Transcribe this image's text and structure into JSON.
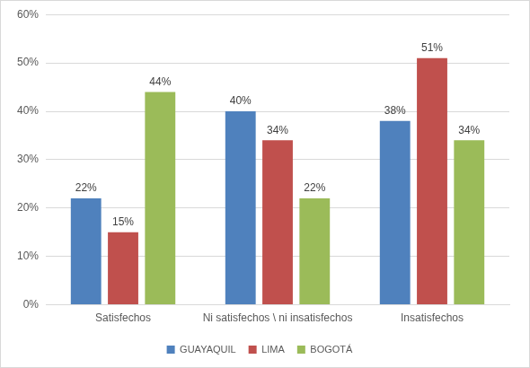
{
  "chart_data": {
    "type": "bar",
    "categories": [
      "Satisfechos",
      "Ni satisfechos \\ ni insatisfechos",
      "Insatisfechos"
    ],
    "series": [
      {
        "name": "GUAYAQUIL",
        "color": "#4f81bd",
        "values": [
          22,
          40,
          38
        ],
        "value_labels": [
          "22%",
          "40%",
          "38%"
        ]
      },
      {
        "name": "LIMA",
        "color": "#c0504d",
        "values": [
          15,
          34,
          51
        ],
        "value_labels": [
          "15%",
          "34%",
          "51%"
        ]
      },
      {
        "name": "BOGOTÁ",
        "color": "#9bbb59",
        "values": [
          44,
          22,
          34
        ],
        "value_labels": [
          "44%",
          "22%",
          "34%"
        ]
      }
    ],
    "ylim": [
      0,
      60
    ],
    "yticks": [
      {
        "value": 0,
        "label": "0%"
      },
      {
        "value": 10,
        "label": "10%"
      },
      {
        "value": 20,
        "label": "20%"
      },
      {
        "value": 30,
        "label": "30%"
      },
      {
        "value": 40,
        "label": "40%"
      },
      {
        "value": 50,
        "label": "50%"
      },
      {
        "value": 60,
        "label": "60%"
      }
    ],
    "grid": true,
    "legend": "bottom",
    "data_labels": true
  }
}
